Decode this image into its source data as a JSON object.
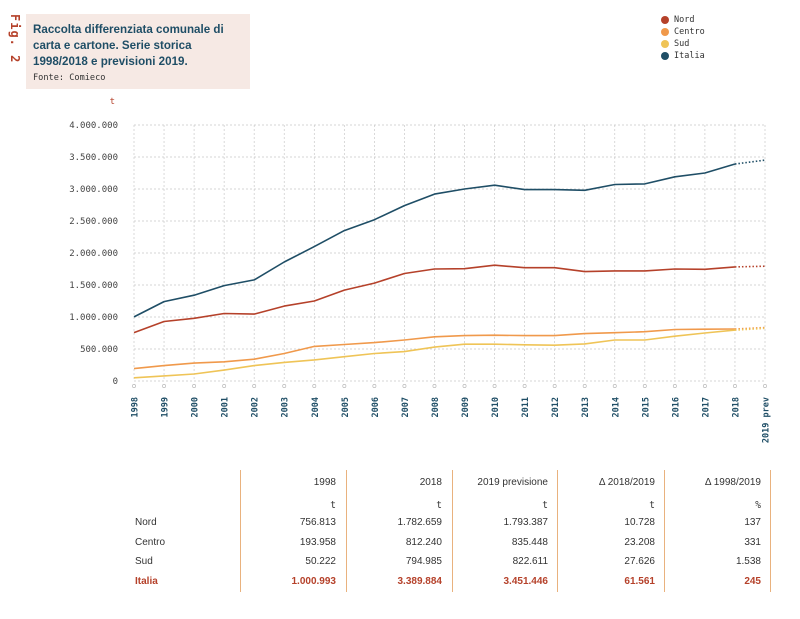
{
  "figure": {
    "label": "Fig. 2",
    "title": "Raccolta differenziata comunale di carta e cartone. Serie storica 1998/2018 e previsioni 2019.",
    "source": "Fonte: Comieco"
  },
  "colors": {
    "Nord": "#b5412a",
    "Centro": "#f0994b",
    "Sud": "#efc457",
    "Italia": "#1f4e66"
  },
  "chart_data": {
    "type": "line",
    "ylabel": "t",
    "ylim": [
      0,
      4000000
    ],
    "yticks": [
      0,
      500000,
      1000000,
      1500000,
      2000000,
      2500000,
      3000000,
      3500000,
      4000000
    ],
    "ytick_labels": [
      "0",
      "500.000",
      "1.000.000",
      "1.500.000",
      "2.000.000",
      "2.500.000",
      "3.000.000",
      "3.500.000",
      "4.000.000"
    ],
    "x": [
      "1998",
      "1999",
      "2000",
      "2001",
      "2002",
      "2003",
      "2004",
      "2005",
      "2006",
      "2007",
      "2008",
      "2009",
      "2010",
      "2011",
      "2012",
      "2013",
      "2014",
      "2015",
      "2016",
      "2017",
      "2018",
      "2019 prev"
    ],
    "grid": true,
    "legend": "top-right",
    "forecast_from_index": 20,
    "series": [
      {
        "name": "Nord",
        "values": [
          756813,
          930000,
          980000,
          1055000,
          1045000,
          1170000,
          1250000,
          1420000,
          1530000,
          1680000,
          1750000,
          1755000,
          1810000,
          1770000,
          1770000,
          1710000,
          1720000,
          1720000,
          1750000,
          1745000,
          1782659,
          1793387
        ]
      },
      {
        "name": "Centro",
        "values": [
          193958,
          240000,
          280000,
          300000,
          340000,
          430000,
          540000,
          570000,
          600000,
          640000,
          690000,
          710000,
          715000,
          710000,
          710000,
          740000,
          755000,
          770000,
          805000,
          810000,
          812240,
          835448
        ]
      },
      {
        "name": "Sud",
        "values": [
          50222,
          80000,
          110000,
          170000,
          240000,
          290000,
          330000,
          380000,
          430000,
          460000,
          530000,
          575000,
          575000,
          565000,
          560000,
          580000,
          640000,
          640000,
          700000,
          750000,
          794985,
          822611
        ]
      },
      {
        "name": "Italia",
        "values": [
          1000993,
          1240000,
          1340000,
          1490000,
          1580000,
          1860000,
          2100000,
          2350000,
          2520000,
          2740000,
          2920000,
          3000000,
          3060000,
          2990000,
          2990000,
          2980000,
          3070000,
          3080000,
          3190000,
          3250000,
          3389884,
          3451446
        ]
      }
    ]
  },
  "table": {
    "headers": [
      "1998",
      "2018",
      "2019 previsione",
      "Δ 2018/2019",
      "Δ 1998/2019"
    ],
    "units": [
      "t",
      "t",
      "t",
      "t",
      "%"
    ],
    "rows": [
      {
        "label": "Nord",
        "values": [
          "756.813",
          "1.782.659",
          "1.793.387",
          "10.728",
          "137"
        ]
      },
      {
        "label": "Centro",
        "values": [
          "193.958",
          "812.240",
          "835.448",
          "23.208",
          "331"
        ]
      },
      {
        "label": "Sud",
        "values": [
          "50.222",
          "794.985",
          "822.611",
          "27.626",
          "1.538"
        ]
      },
      {
        "label": "Italia",
        "values": [
          "1.000.993",
          "3.389.884",
          "3.451.446",
          "61.561",
          "245"
        ]
      }
    ]
  }
}
